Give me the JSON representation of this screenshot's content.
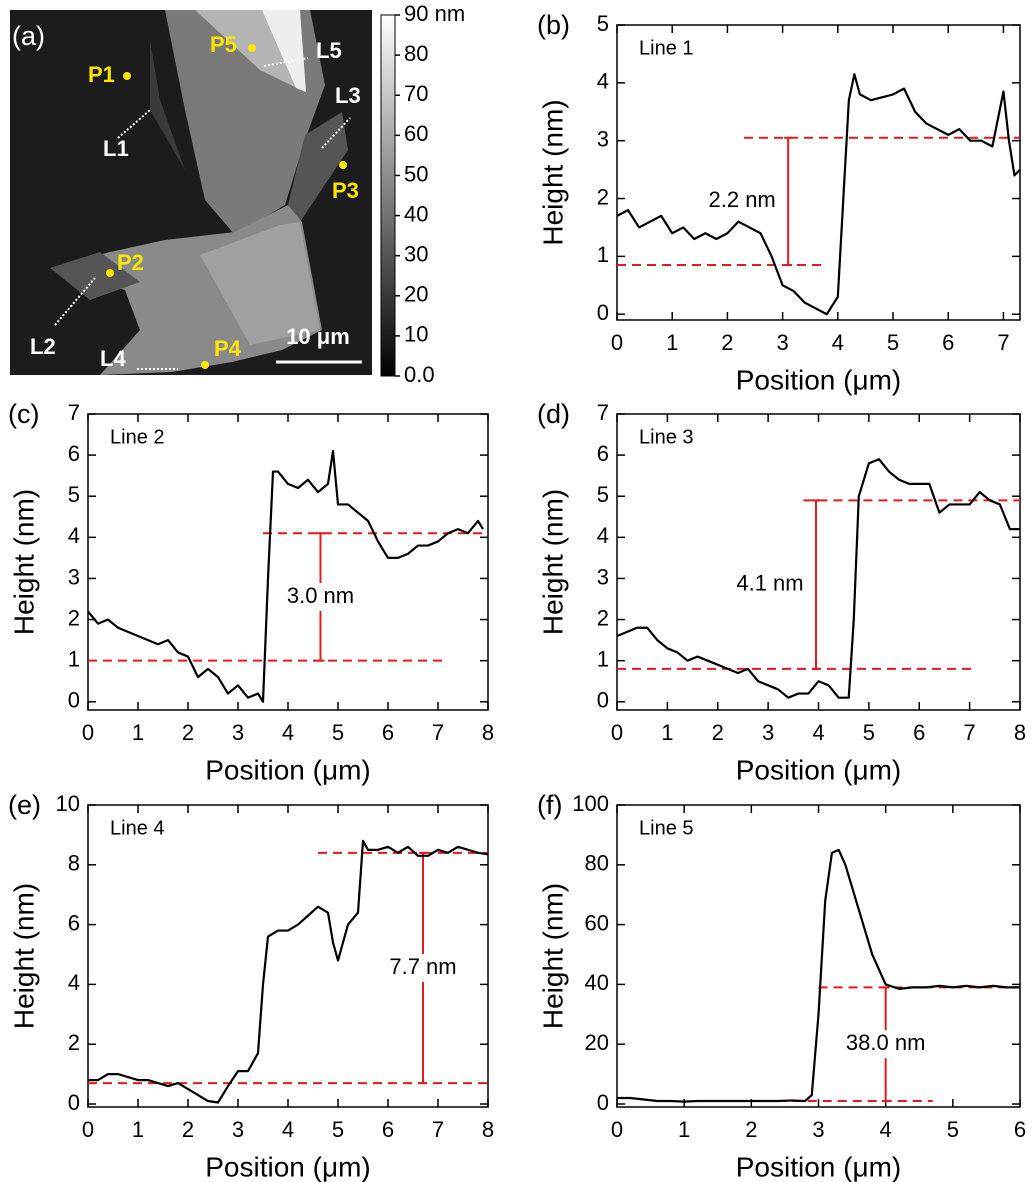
{
  "chart_data": [
    {
      "type": "image",
      "panel": "(a)",
      "colorbar": {
        "ylim": [
          0,
          90
        ],
        "yticks": [
          {
            "value": 90,
            "label": "90 nm"
          },
          80,
          70,
          60,
          50,
          40,
          30,
          20,
          10,
          {
            "value": 0,
            "label": "0.0"
          }
        ]
      },
      "points": [
        "P1",
        "P2",
        "P3",
        "P4",
        "P5"
      ],
      "lines": [
        "L1",
        "L2",
        "L3",
        "L4",
        "L5"
      ],
      "scale_bar": "10 μm"
    },
    {
      "type": "line",
      "panel": "(b)",
      "title": "Line 1",
      "xlabel": "Position (μm)",
      "ylabel": "Height (nm)",
      "color": "#000000",
      "ref_color": "#e31a1c",
      "x": [
        0,
        0.2,
        0.4,
        0.6,
        0.8,
        1.0,
        1.2,
        1.4,
        1.6,
        1.8,
        2.0,
        2.2,
        2.4,
        2.6,
        2.8,
        3.0,
        3.2,
        3.4,
        3.6,
        3.8,
        4.0,
        4.2,
        4.3,
        4.4,
        4.6,
        4.8,
        5.0,
        5.2,
        5.4,
        5.6,
        5.8,
        6.0,
        6.2,
        6.4,
        6.6,
        6.8,
        7.0,
        7.1,
        7.2,
        7.3
      ],
      "values": [
        1.7,
        1.8,
        1.5,
        1.6,
        1.7,
        1.4,
        1.5,
        1.3,
        1.4,
        1.3,
        1.4,
        1.6,
        1.5,
        1.4,
        1.0,
        0.5,
        0.4,
        0.2,
        0.1,
        0.0,
        0.3,
        3.7,
        4.15,
        3.8,
        3.7,
        3.75,
        3.8,
        3.9,
        3.5,
        3.3,
        3.2,
        3.1,
        3.2,
        3.0,
        3.0,
        2.9,
        3.85,
        3.0,
        2.4,
        2.5
      ],
      "xlim": [
        0,
        7.3
      ],
      "ylim": [
        -0.1,
        5
      ],
      "xticks": [
        0,
        1,
        2,
        3,
        4,
        5,
        6,
        7
      ],
      "yticks": [
        0,
        1,
        2,
        3,
        4,
        5
      ],
      "ref_lines": [
        {
          "y": 0.85,
          "x": [
            0,
            3.8
          ]
        },
        {
          "y": 3.05,
          "x": [
            2.3,
            7.3
          ]
        }
      ],
      "measure_x": 3.1,
      "measure_label": "2.2 nm"
    },
    {
      "type": "line",
      "panel": "(c)",
      "title": "Line 2",
      "xlabel": "Position (μm)",
      "ylabel": "Height (nm)",
      "color": "#000000",
      "ref_color": "#e31a1c",
      "x": [
        0,
        0.2,
        0.4,
        0.6,
        0.8,
        1.0,
        1.2,
        1.4,
        1.6,
        1.8,
        2.0,
        2.2,
        2.4,
        2.6,
        2.8,
        3.0,
        3.2,
        3.4,
        3.5,
        3.6,
        3.7,
        3.8,
        4.0,
        4.2,
        4.4,
        4.6,
        4.8,
        4.9,
        5.0,
        5.2,
        5.4,
        5.6,
        5.8,
        6.0,
        6.2,
        6.4,
        6.6,
        6.8,
        7.0,
        7.2,
        7.4,
        7.6,
        7.8,
        7.9
      ],
      "values": [
        2.2,
        1.9,
        2.0,
        1.8,
        1.7,
        1.6,
        1.5,
        1.4,
        1.5,
        1.2,
        1.1,
        0.6,
        0.8,
        0.6,
        0.2,
        0.4,
        0.1,
        0.2,
        0.0,
        3.0,
        5.6,
        5.6,
        5.3,
        5.2,
        5.4,
        5.1,
        5.3,
        6.1,
        4.8,
        4.8,
        4.6,
        4.4,
        3.9,
        3.5,
        3.5,
        3.6,
        3.8,
        3.8,
        3.9,
        4.1,
        4.2,
        4.1,
        4.4,
        4.2
      ],
      "xlim": [
        0,
        8
      ],
      "ylim": [
        -0.2,
        7
      ],
      "xticks": [
        0,
        1,
        2,
        3,
        4,
        5,
        6,
        7,
        8
      ],
      "yticks": [
        0,
        1,
        2,
        3,
        4,
        5,
        6,
        7
      ],
      "ref_lines": [
        {
          "y": 1.0,
          "x": [
            0,
            7.1
          ]
        },
        {
          "y": 4.1,
          "x": [
            3.5,
            8
          ]
        }
      ],
      "measure_x": 4.65,
      "measure_label": "3.0 nm"
    },
    {
      "type": "line",
      "panel": "(d)",
      "title": "Line 3",
      "xlabel": "Position (μm)",
      "ylabel": "Height (nm)",
      "color": "#000000",
      "ref_color": "#e31a1c",
      "x": [
        0,
        0.2,
        0.4,
        0.6,
        0.8,
        1.0,
        1.2,
        1.4,
        1.6,
        1.8,
        2.0,
        2.2,
        2.4,
        2.6,
        2.8,
        3.0,
        3.2,
        3.4,
        3.6,
        3.8,
        4.0,
        4.2,
        4.4,
        4.6,
        4.7,
        4.8,
        5.0,
        5.2,
        5.4,
        5.6,
        5.8,
        6.0,
        6.2,
        6.4,
        6.6,
        6.8,
        7.0,
        7.2,
        7.4,
        7.6,
        7.8,
        8.0
      ],
      "values": [
        1.6,
        1.7,
        1.8,
        1.8,
        1.5,
        1.3,
        1.2,
        1.0,
        1.1,
        1.0,
        0.9,
        0.8,
        0.7,
        0.8,
        0.5,
        0.4,
        0.3,
        0.1,
        0.2,
        0.2,
        0.5,
        0.4,
        0.1,
        0.1,
        2.0,
        5.0,
        5.8,
        5.9,
        5.6,
        5.4,
        5.3,
        5.3,
        5.3,
        4.6,
        4.8,
        4.8,
        4.8,
        5.1,
        4.9,
        4.8,
        4.2,
        4.2
      ],
      "xlim": [
        0,
        8
      ],
      "ylim": [
        -0.2,
        7
      ],
      "xticks": [
        0,
        1,
        2,
        3,
        4,
        5,
        6,
        7,
        8
      ],
      "yticks": [
        0,
        1,
        2,
        3,
        4,
        5,
        6,
        7
      ],
      "ref_lines": [
        {
          "y": 0.8,
          "x": [
            0,
            7.1
          ]
        },
        {
          "y": 4.9,
          "x": [
            3.7,
            8
          ]
        }
      ],
      "measure_x": 3.95,
      "measure_label": "4.1 nm"
    },
    {
      "type": "line",
      "panel": "(e)",
      "title": "Line 4",
      "xlabel": "Position (μm)",
      "ylabel": "Height (nm)",
      "color": "#000000",
      "ref_color": "#e31a1c",
      "x": [
        0,
        0.2,
        0.4,
        0.6,
        0.8,
        1.0,
        1.2,
        1.4,
        1.6,
        1.8,
        2.0,
        2.2,
        2.4,
        2.6,
        2.8,
        3.0,
        3.2,
        3.4,
        3.5,
        3.6,
        3.8,
        4.0,
        4.2,
        4.4,
        4.6,
        4.8,
        4.9,
        5.0,
        5.2,
        5.4,
        5.5,
        5.6,
        5.8,
        6.0,
        6.2,
        6.4,
        6.6,
        6.8,
        7.0,
        7.2,
        7.4,
        7.6,
        7.8,
        8.0
      ],
      "values": [
        0.8,
        0.8,
        1.0,
        1.0,
        0.9,
        0.8,
        0.8,
        0.7,
        0.6,
        0.7,
        0.5,
        0.3,
        0.1,
        0.05,
        0.6,
        1.1,
        1.1,
        1.7,
        4.0,
        5.6,
        5.8,
        5.8,
        6.0,
        6.3,
        6.6,
        6.4,
        5.4,
        4.8,
        6.0,
        6.4,
        8.8,
        8.5,
        8.5,
        8.6,
        8.4,
        8.6,
        8.3,
        8.3,
        8.5,
        8.4,
        8.6,
        8.5,
        8.4,
        8.35
      ],
      "xlim": [
        0,
        8
      ],
      "ylim": [
        -0.1,
        10
      ],
      "xticks": [
        0,
        1,
        2,
        3,
        4,
        5,
        6,
        7,
        8
      ],
      "yticks": [
        0,
        2,
        4,
        6,
        8,
        10
      ],
      "ref_lines": [
        {
          "y": 0.7,
          "x": [
            0,
            8
          ]
        },
        {
          "y": 8.4,
          "x": [
            4.6,
            8
          ]
        }
      ],
      "measure_x": 6.7,
      "measure_label": "7.7 nm"
    },
    {
      "type": "line",
      "panel": "(f)",
      "title": "Line 5",
      "xlabel": "Position (μm)",
      "ylabel": "Height (nm)",
      "color": "#000000",
      "ref_color": "#e31a1c",
      "x": [
        0,
        0.2,
        0.4,
        0.6,
        0.8,
        1.0,
        1.2,
        1.4,
        1.6,
        1.8,
        2.0,
        2.2,
        2.4,
        2.6,
        2.8,
        2.9,
        3.0,
        3.1,
        3.2,
        3.3,
        3.4,
        3.6,
        3.8,
        4.0,
        4.2,
        4.4,
        4.6,
        4.8,
        5.0,
        5.2,
        5.4,
        5.6,
        5.8,
        6.0
      ],
      "values": [
        2,
        2,
        1.5,
        1,
        1,
        0.8,
        1,
        1,
        1,
        1,
        1,
        1,
        1,
        1.2,
        1,
        3,
        30,
        68,
        84,
        85,
        80,
        65,
        50,
        40,
        38.5,
        39,
        39,
        39.5,
        39,
        39.5,
        39,
        39.5,
        39,
        39
      ],
      "xlim": [
        0,
        6
      ],
      "ylim": [
        -1,
        100
      ],
      "xticks": [
        0,
        1,
        2,
        3,
        4,
        5,
        6
      ],
      "yticks": [
        0,
        20,
        40,
        60,
        80,
        100
      ],
      "ref_lines": [
        {
          "y": 1,
          "x": [
            1.5,
            4.7
          ]
        },
        {
          "y": 39,
          "x": [
            3,
            6
          ]
        }
      ],
      "measure_x": 4.0,
      "measure_label": "38.0 nm"
    }
  ]
}
